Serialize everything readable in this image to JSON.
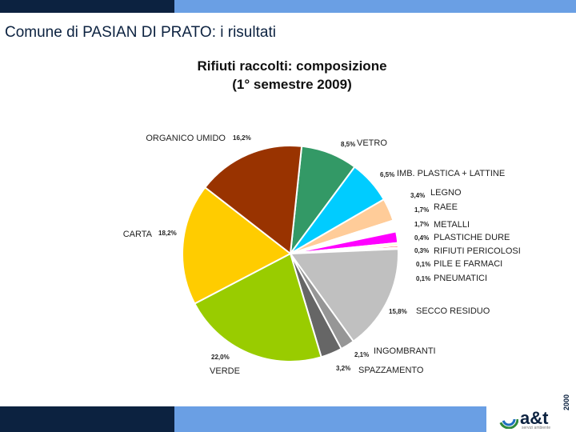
{
  "slide": {
    "title": "Comune di PASIAN DI PRATO: i risultati"
  },
  "chart_data": {
    "type": "pie",
    "title_lines": [
      "Rifiuti raccolti: composizione",
      "(1° semestre 2009)"
    ],
    "slices": [
      {
        "label": "VETRO",
        "pct_label": "8,5%",
        "value": 8.5,
        "color": "#339966"
      },
      {
        "label": "IMB. PLASTICA + LATTINE",
        "pct_label": "6,5%",
        "value": 6.5,
        "color": "#00ccff"
      },
      {
        "label": "LEGNO",
        "pct_label": "3,4%",
        "value": 3.4,
        "color": "#ffcc99"
      },
      {
        "label": "RAEE",
        "pct_label": "1,7%",
        "value": 1.7,
        "color": "#ffffff"
      },
      {
        "label": "METALLI",
        "pct_label": "1,7%",
        "value": 1.7,
        "color": "#ff00ff"
      },
      {
        "label": "PLASTICHE DURE",
        "pct_label": "0,4%",
        "value": 0.4,
        "color": "#ffffcc"
      },
      {
        "label": "RIFIUTI PERICOLOSI",
        "pct_label": "0,3%",
        "value": 0.3,
        "color": "#ff0000"
      },
      {
        "label": "PILE E FARMACI",
        "pct_label": "0,1%",
        "value": 0.1,
        "color": "#000080"
      },
      {
        "label": "PNEUMATICI",
        "pct_label": "0,1%",
        "value": 0.1,
        "color": "#808000"
      },
      {
        "label": "SECCO RESIDUO",
        "pct_label": "15,8%",
        "value": 15.8,
        "color": "#c0c0c0"
      },
      {
        "label": "INGOMBRANTI",
        "pct_label": "2,1%",
        "value": 2.1,
        "color": "#969696"
      },
      {
        "label": "SPAZZAMENTO",
        "pct_label": "3,2%",
        "value": 3.2,
        "color": "#666666"
      },
      {
        "label": "VERDE",
        "pct_label": "22,0%",
        "value": 22.0,
        "color": "#99cc00"
      },
      {
        "label": "CARTA",
        "pct_label": "18,2%",
        "value": 18.2,
        "color": "#ffcc00"
      },
      {
        "label": "ORGANICO UMIDO",
        "pct_label": "16,2%",
        "value": 16.2,
        "color": "#993300"
      }
    ]
  },
  "logo": {
    "name": "a&t",
    "year": "2000",
    "tagline": "servizi ambiente"
  }
}
